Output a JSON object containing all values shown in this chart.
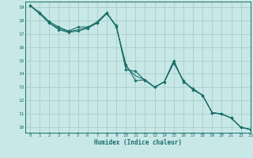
{
  "xlabel": "Humidex (Indice chaleur)",
  "background_color": "#c8e8e8",
  "grid_color": "#a8cccc",
  "line_color": "#1a6e6a",
  "xlim": [
    -0.5,
    23
  ],
  "ylim": [
    9.6,
    19.4
  ],
  "xticks": [
    0,
    1,
    2,
    3,
    4,
    5,
    6,
    7,
    8,
    9,
    10,
    11,
    12,
    13,
    14,
    15,
    16,
    17,
    18,
    19,
    20,
    21,
    22,
    23
  ],
  "yticks": [
    10,
    11,
    12,
    13,
    14,
    15,
    16,
    17,
    18,
    19
  ],
  "line1_x": [
    0,
    1,
    2,
    3,
    4,
    5,
    6,
    7,
    8,
    9,
    10,
    11,
    12,
    13,
    14,
    15,
    16,
    17,
    18,
    19,
    20,
    21,
    22,
    23
  ],
  "line1_y": [
    19.1,
    18.6,
    17.9,
    17.5,
    17.2,
    17.5,
    17.5,
    17.8,
    18.5,
    17.6,
    14.3,
    14.2,
    13.5,
    13.0,
    13.4,
    15.0,
    13.4,
    12.9,
    12.4,
    11.1,
    11.0,
    10.7,
    10.0,
    9.85
  ],
  "line2_x": [
    0,
    1,
    2,
    3,
    4,
    5,
    6,
    7,
    8,
    9,
    10,
    11,
    12,
    13,
    14,
    15,
    16,
    17,
    18,
    19,
    20,
    21,
    22,
    23
  ],
  "line2_y": [
    19.1,
    18.5,
    17.8,
    17.3,
    17.1,
    17.2,
    17.4,
    17.8,
    18.55,
    17.5,
    14.7,
    13.5,
    13.55,
    13.0,
    13.4,
    14.8,
    13.5,
    12.8,
    12.4,
    11.1,
    11.0,
    10.7,
    10.0,
    9.85
  ],
  "line3_x": [
    0,
    1,
    2,
    3,
    4,
    5,
    6,
    7,
    8,
    9,
    10,
    11,
    12,
    13,
    14,
    15,
    16,
    17,
    18,
    19,
    20,
    21,
    22,
    23
  ],
  "line3_y": [
    19.1,
    18.5,
    17.8,
    17.4,
    17.15,
    17.3,
    17.45,
    17.9,
    18.57,
    17.55,
    14.55,
    13.85,
    13.55,
    13.0,
    13.4,
    14.9,
    13.45,
    12.85,
    12.4,
    11.1,
    11.0,
    10.7,
    10.0,
    9.85
  ]
}
